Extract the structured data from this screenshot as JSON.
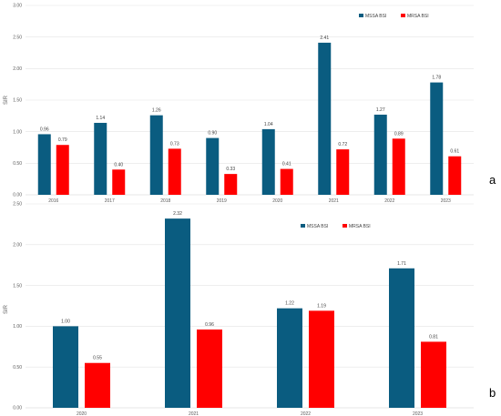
{
  "panel_letters": [
    "a",
    "b"
  ],
  "colors": {
    "mssa": "#0a5c80",
    "mrsa": "#ff0000",
    "grid": "#e3e3e3",
    "tick": "#595959"
  },
  "chart_data": [
    {
      "type": "bar",
      "panel": "a",
      "categories": [
        "2016",
        "2017",
        "2018",
        "2019",
        "2020",
        "2021",
        "2022",
        "2023"
      ],
      "series": [
        {
          "name": "MSSA BSI",
          "values": [
            0.96,
            1.14,
            1.26,
            0.9,
            1.04,
            2.41,
            1.27,
            1.78
          ],
          "labels": [
            "0.96",
            "1.14",
            "1.26",
            "0.90",
            "1.04",
            "2.41",
            "1.27",
            "1.78"
          ]
        },
        {
          "name": "MRSA BSI",
          "values": [
            0.79,
            0.4,
            0.73,
            0.33,
            0.41,
            0.72,
            0.89,
            0.61
          ],
          "labels": [
            "0.79",
            "0.40",
            "0.73",
            "0.33",
            "0.41",
            "0.72",
            "0.89",
            "0.61"
          ]
        }
      ],
      "ylabel": "SIR",
      "ylim": [
        0,
        3
      ],
      "yticks": [
        "0.00",
        "0.50",
        "1.00",
        "1.50",
        "2.00",
        "2.50",
        "3.00"
      ],
      "grid": true,
      "legend": "top-right"
    },
    {
      "type": "bar",
      "panel": "b",
      "categories": [
        "2020",
        "2021",
        "2022",
        "2023"
      ],
      "series": [
        {
          "name": "MSSA BSI",
          "values": [
            1.0,
            2.32,
            1.22,
            1.71
          ],
          "labels": [
            "1.00",
            "2.32",
            "1.22",
            "1.71"
          ]
        },
        {
          "name": "MRSA BSI",
          "values": [
            0.55,
            0.96,
            1.19,
            0.81
          ],
          "labels": [
            "0.55",
            "0.96",
            "1.19",
            "0.81"
          ]
        }
      ],
      "ylabel": "SIR",
      "ylim": [
        0,
        2.5
      ],
      "yticks": [
        "0.00",
        "0.50",
        "1.00",
        "1.50",
        "2.00",
        "2.50"
      ],
      "grid": true,
      "legend": "top-right"
    }
  ]
}
